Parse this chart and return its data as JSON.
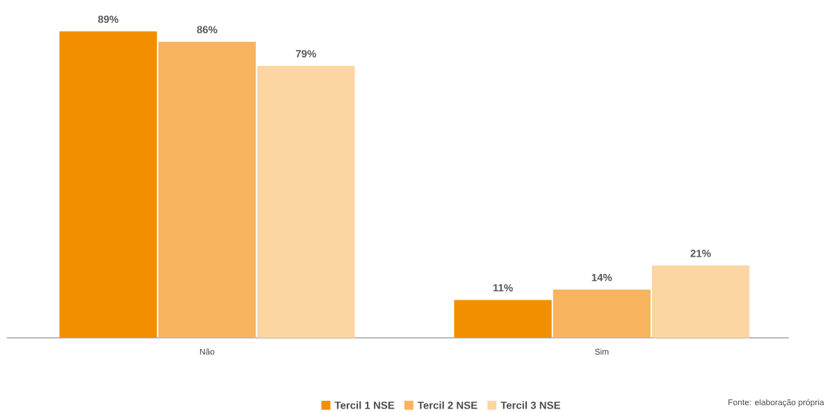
{
  "chart_data": {
    "type": "bar",
    "categories": [
      "Não",
      "Sim"
    ],
    "series": [
      {
        "name": "Tercil 1 NSE",
        "color": "#f28f00",
        "values": [
          89,
          11
        ],
        "value_labels": [
          "89%",
          "11%"
        ]
      },
      {
        "name": "Tercil 2 NSE",
        "color": "#f8b35e",
        "values": [
          86,
          14
        ],
        "value_labels": [
          "86%",
          "14%"
        ]
      },
      {
        "name": "Tercil 3 NSE",
        "color": "#fcd5a3",
        "values": [
          79,
          21
        ],
        "value_labels": [
          "79%",
          "21%"
        ]
      }
    ],
    "legend": "bottom",
    "annotations": [
      "Fonte: elaboração própria"
    ]
  }
}
